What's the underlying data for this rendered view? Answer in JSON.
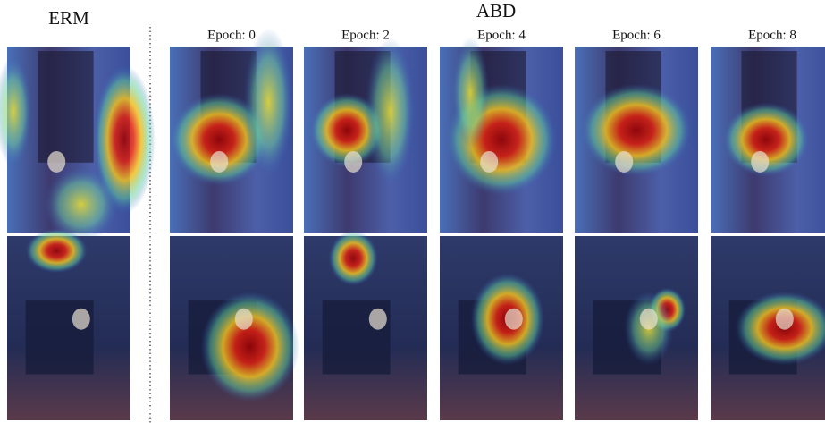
{
  "header": {
    "left_label": "ERM",
    "right_label": "ABD"
  },
  "columns": [
    "Epoch: 0",
    "Epoch: 2",
    "Epoch: 4",
    "Epoch: 6",
    "Epoch: 8"
  ]
}
